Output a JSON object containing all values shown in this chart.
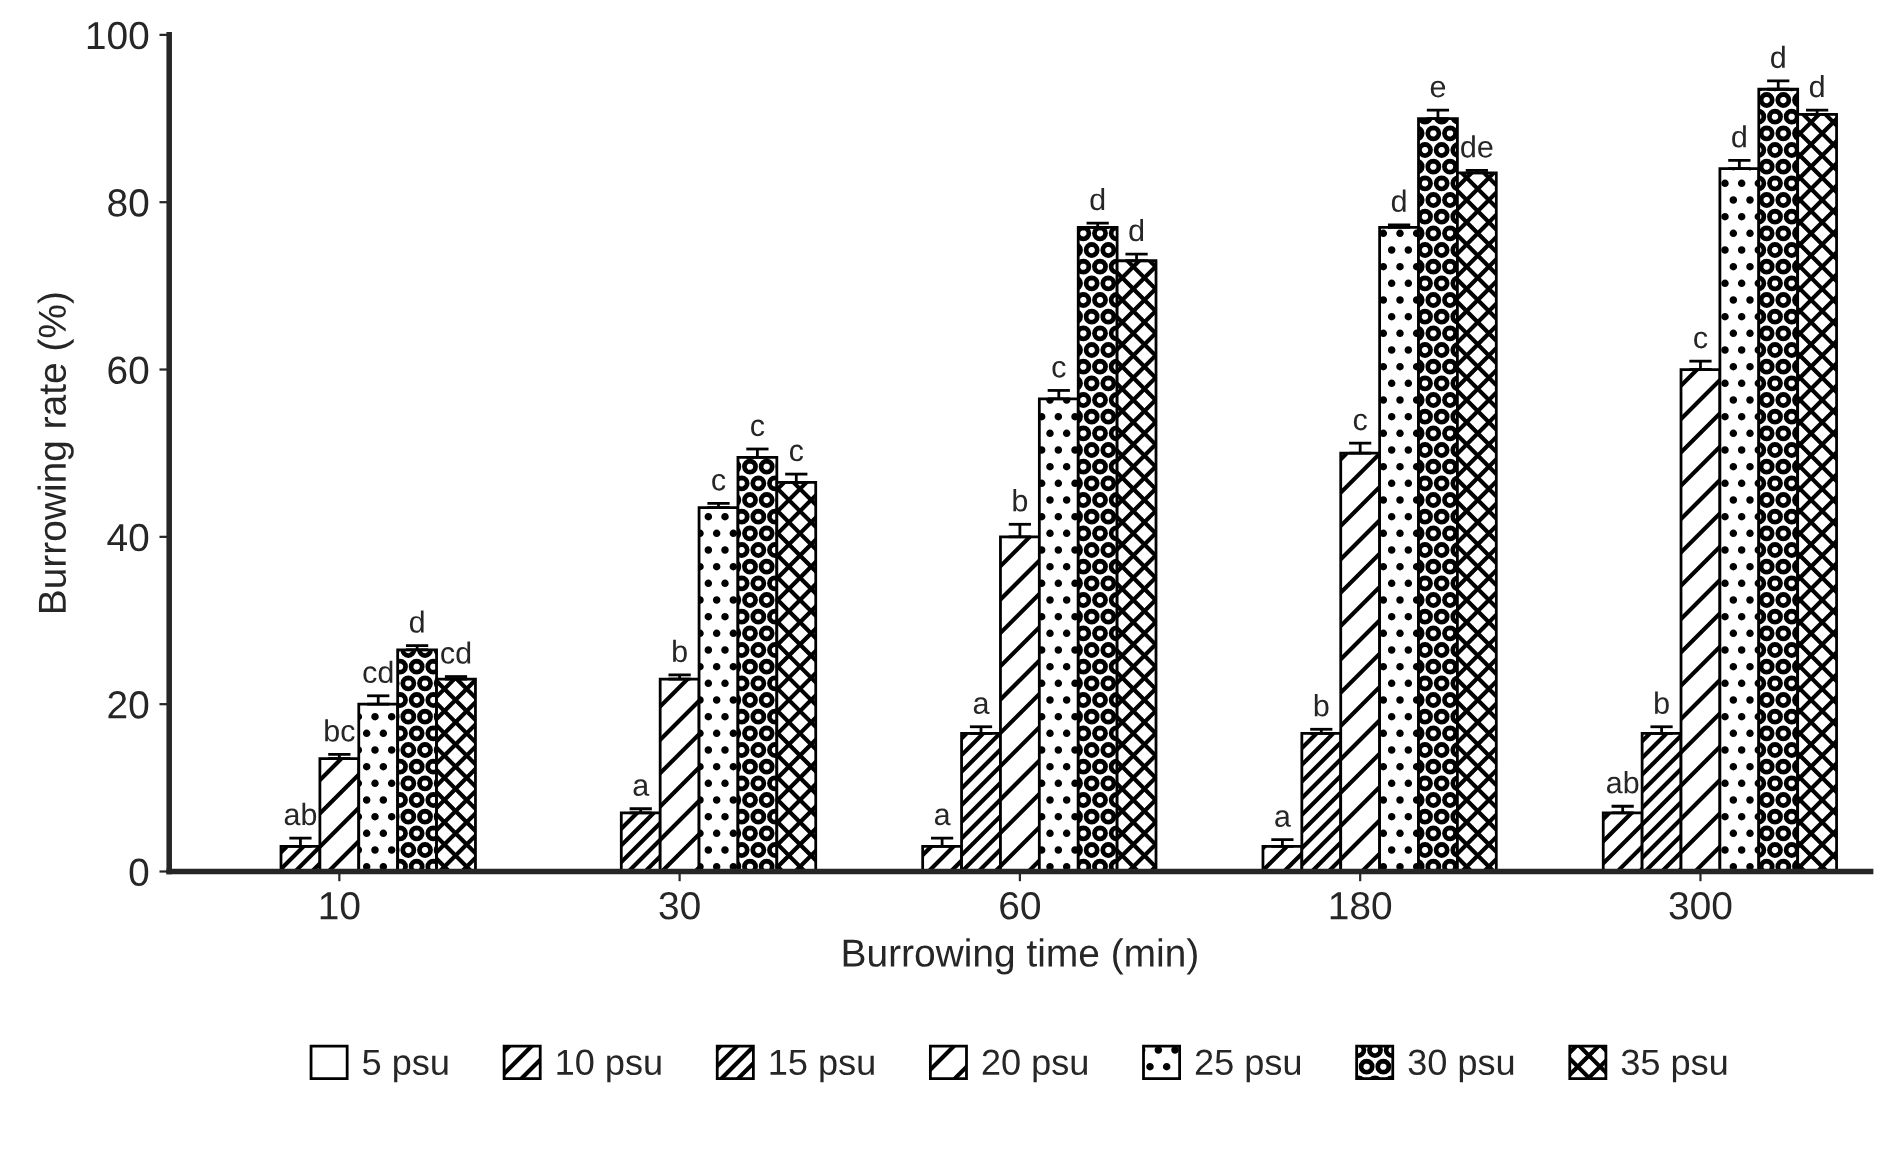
{
  "chart_data": {
    "type": "bar",
    "xlabel": "Burrowing time (min)",
    "ylabel": "Burrowing rate (%)",
    "categories": [
      "10",
      "30",
      "60",
      "180",
      "300"
    ],
    "ylim": [
      0,
      100
    ],
    "yticks": [
      0,
      20,
      40,
      60,
      80,
      100
    ],
    "grid": false,
    "legend": "bottom",
    "series": [
      {
        "name": "5 psu",
        "color": "#000000",
        "values": [
          0,
          0,
          0,
          0,
          0
        ],
        "errors": [
          null,
          null,
          null,
          null,
          null
        ],
        "value_labels": [
          null,
          null,
          null,
          null,
          null
        ]
      },
      {
        "name": "10 psu",
        "color": "#000000",
        "values": [
          0,
          0,
          3,
          3,
          7
        ],
        "errors": [
          null,
          null,
          1,
          0.8,
          0.8
        ],
        "value_labels": [
          null,
          null,
          "a",
          "a",
          "ab"
        ]
      },
      {
        "name": "15 psu",
        "color": "#000000",
        "values": [
          3,
          7,
          16.5,
          16.5,
          16.5
        ],
        "errors": [
          1,
          0.5,
          0.8,
          0.5,
          0.8
        ],
        "value_labels": [
          "ab",
          "a",
          "a",
          "b",
          "b"
        ]
      },
      {
        "name": "20 psu",
        "color": "#000000",
        "values": [
          13.5,
          23,
          40,
          50,
          60
        ],
        "errors": [
          0.5,
          0.5,
          1.5,
          1.2,
          1
        ],
        "value_labels": [
          "bc",
          "b",
          "b",
          "c",
          "c"
        ]
      },
      {
        "name": "25 psu",
        "color": "#000000",
        "values": [
          20,
          43.5,
          56.5,
          77,
          84
        ],
        "errors": [
          1,
          0.5,
          1,
          0.3,
          1
        ],
        "value_labels": [
          "cd",
          "c",
          "c",
          "d",
          "d"
        ]
      },
      {
        "name": "30 psu",
        "color": "#000000",
        "values": [
          26.5,
          49.5,
          77,
          90,
          93.5
        ],
        "errors": [
          0.5,
          1,
          0.5,
          1,
          1
        ],
        "value_labels": [
          "d",
          "c",
          "d",
          "e",
          "d"
        ]
      },
      {
        "name": "35 psu",
        "color": "#000000",
        "values": [
          23,
          46.5,
          73,
          83.5,
          90.5
        ],
        "errors": [
          0.3,
          1,
          0.8,
          0.3,
          0.5
        ],
        "value_labels": [
          "cd",
          "c",
          "d",
          "de",
          "d"
        ]
      }
    ]
  }
}
